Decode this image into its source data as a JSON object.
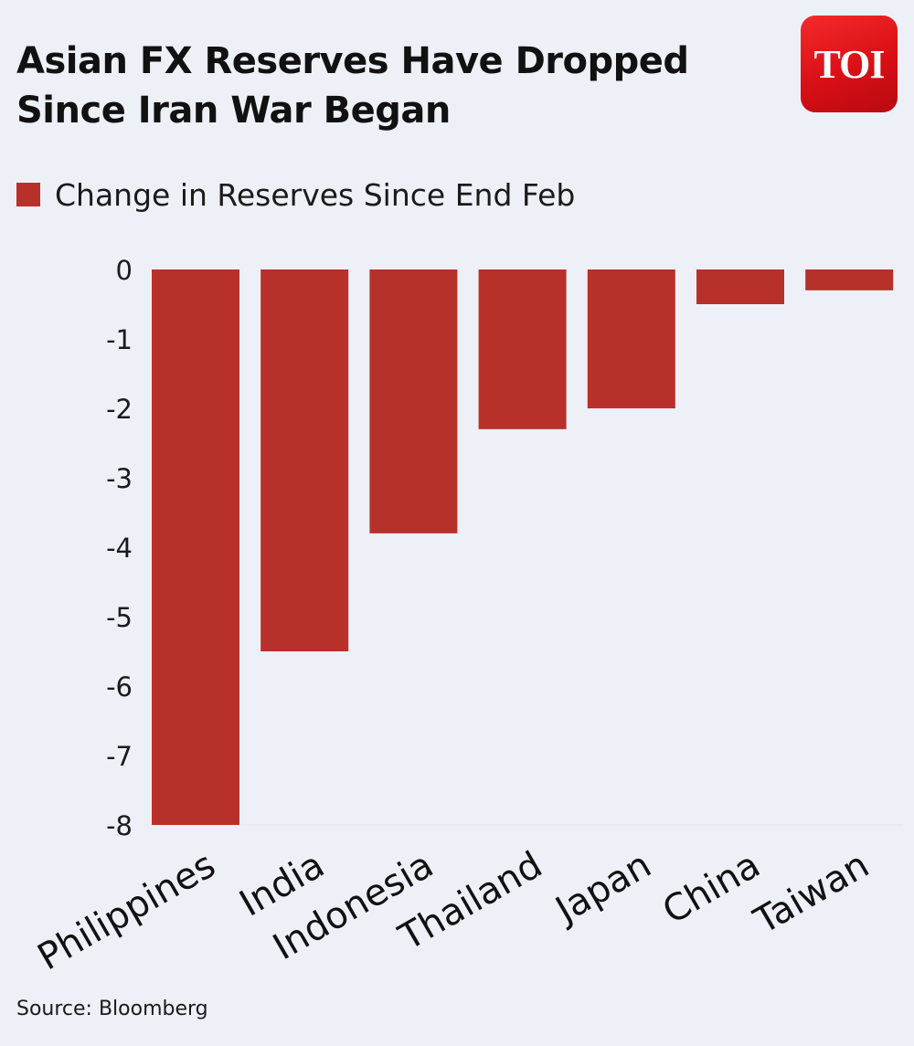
{
  "header": {
    "title": "Asian FX Reserves Have Dropped Since Iran War Began",
    "logo_text": "TOI"
  },
  "footer": {
    "source": "Source: Bloomberg"
  },
  "colors": {
    "bar": "#b8302a",
    "background": "#eef0f7",
    "logo": "#e31b1f"
  },
  "chart_data": {
    "type": "bar",
    "title": "Asian FX Reserves Have Dropped Since Iran War Began",
    "categories": [
      "Philippines",
      "India",
      "Indonesia",
      "Thailand",
      "Japan",
      "China",
      "Taiwan"
    ],
    "series": [
      {
        "name": "Change in Reserves Since End Feb",
        "values": [
          -8.0,
          -5.5,
          -3.8,
          -2.3,
          -2.0,
          -0.5,
          -0.3
        ]
      }
    ],
    "yticks": [
      0,
      -1,
      -2,
      -3,
      -4,
      -5,
      -6,
      -7,
      -8
    ],
    "ylim": [
      -8,
      0
    ],
    "xlabel": "",
    "ylabel": "",
    "grid": false,
    "legend": "top-left"
  }
}
